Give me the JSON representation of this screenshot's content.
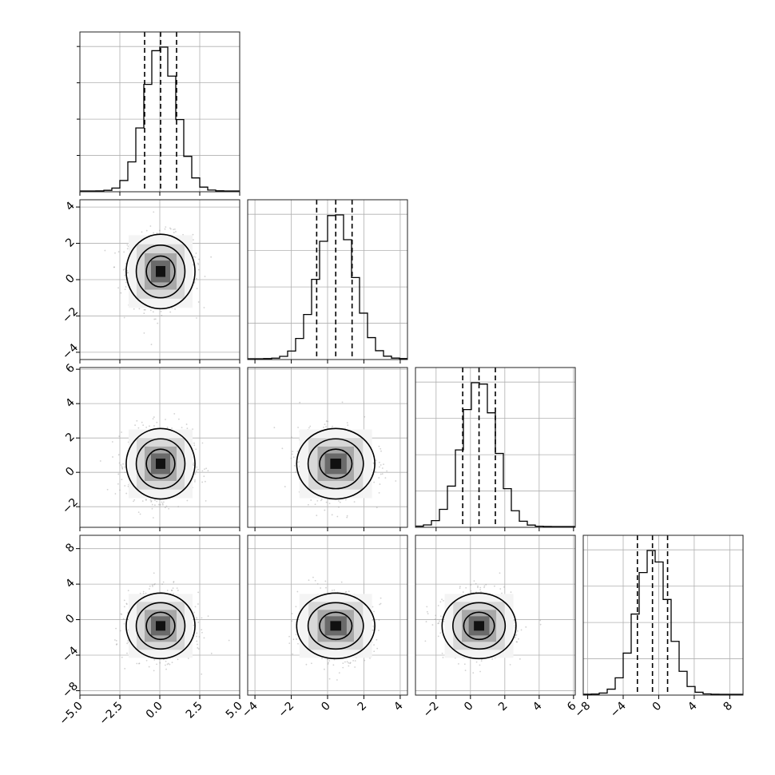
{
  "chart_data": {
    "type": "corner",
    "n_params": 4,
    "grid": true,
    "params": [
      {
        "ticks": [
          -5.0,
          -2.5,
          0.0,
          2.5,
          5.0
        ],
        "tick_labels": [
          "−5.0",
          "−2.5",
          "0.0",
          "2.5",
          "5.0"
        ],
        "range": [
          -5.0,
          5.0
        ],
        "median": 0.05,
        "q16": -0.95,
        "q84": 1.05,
        "sigma": 1.0
      },
      {
        "ticks": [
          -4,
          -2,
          0,
          2,
          4
        ],
        "tick_labels": [
          "−4",
          "−2",
          "0",
          "2",
          "4"
        ],
        "range": [
          -4.4,
          4.4
        ],
        "median": 0.45,
        "q16": -0.6,
        "q84": 1.35,
        "sigma": 1.0
      },
      {
        "ticks": [
          -2,
          0,
          2,
          4,
          6
        ],
        "tick_labels": [
          "−2",
          "0",
          "2",
          "4",
          "6"
        ],
        "range": [
          -3.2,
          6.1
        ],
        "median": 0.5,
        "q16": -0.45,
        "q84": 1.45,
        "sigma": 1.0
      },
      {
        "ticks": [
          -8,
          -4,
          0,
          4,
          8
        ],
        "tick_labels": [
          "−8",
          "−4",
          "0",
          "4",
          "8"
        ],
        "range": [
          -8.5,
          9.5
        ],
        "median": -0.7,
        "q16": -2.4,
        "q84": 1.0,
        "sigma": 1.8
      }
    ]
  }
}
